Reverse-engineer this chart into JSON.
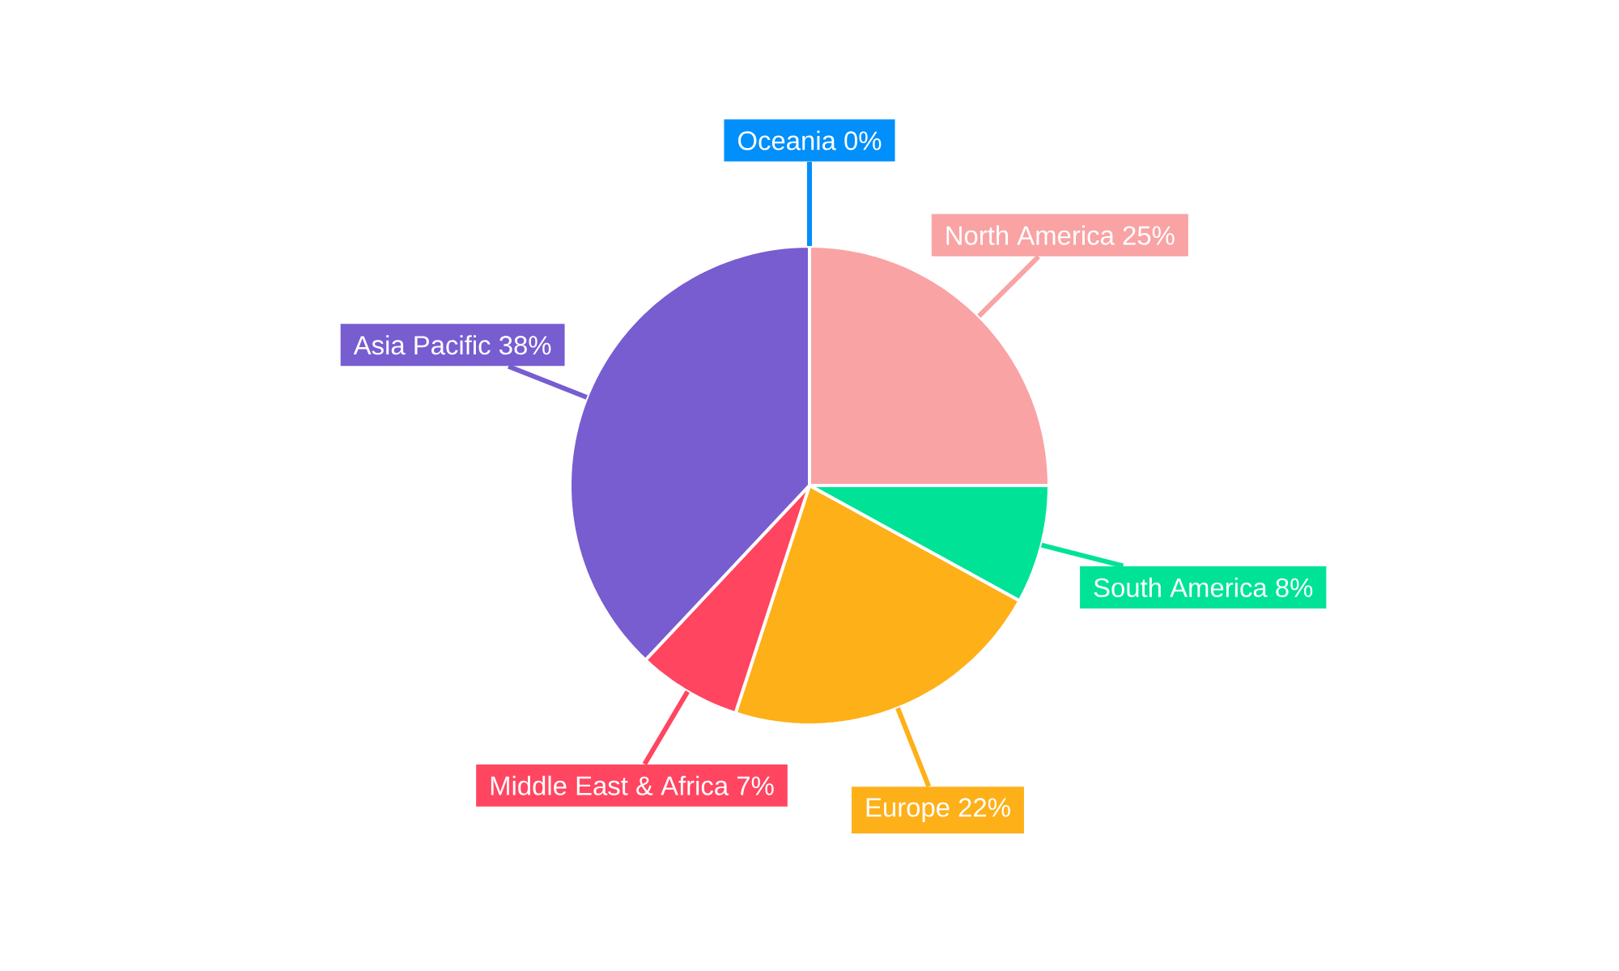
{
  "chart_data": {
    "type": "pie",
    "categories": [
      "North America",
      "South America",
      "Europe",
      "Middle East & Africa",
      "Asia Pacific",
      "Oceania"
    ],
    "values": [
      25,
      8,
      22,
      7,
      38,
      0
    ],
    "value_labels": [
      "25%",
      "8%",
      "22%",
      "7%",
      "38%",
      "0%"
    ],
    "colors": [
      "#f9a3a4",
      "#00e396",
      "#feb019",
      "#ff4560",
      "#775dd0",
      "#008ffb"
    ]
  }
}
